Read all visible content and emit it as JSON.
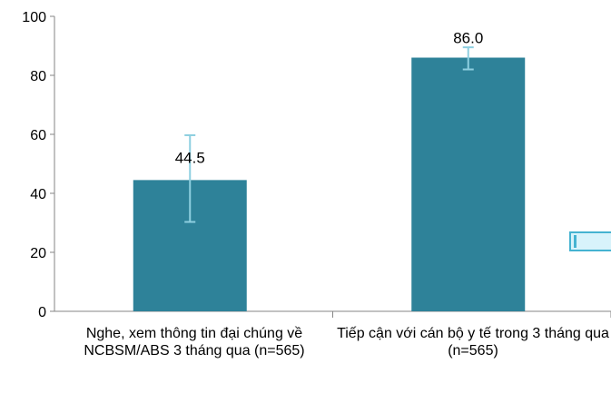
{
  "chart_data": {
    "type": "bar",
    "categories": [
      "Nghe, xem thông tin đại chúng về NCBSM/ABS 3 tháng qua (n=565)",
      "Tiếp cận với cán bộ y tế trong 3 tháng qua (n=565)"
    ],
    "values": [
      44.5,
      86.0
    ],
    "value_labels": [
      "44.5",
      "86.0"
    ],
    "error_bars": [
      {
        "low": 30.3,
        "high": 59.7
      },
      {
        "low": 82.0,
        "high": 89.5
      }
    ],
    "ylim": [
      0,
      100
    ],
    "yticks": [
      "0",
      "20",
      "40",
      "60",
      "80",
      "100"
    ],
    "grid": false,
    "bar_color": "#2e8299",
    "error_bar_color": "#8ecfe0"
  },
  "decoration": {
    "fill_color": "#d8f3fb",
    "accent_color": "#45b3d1"
  }
}
